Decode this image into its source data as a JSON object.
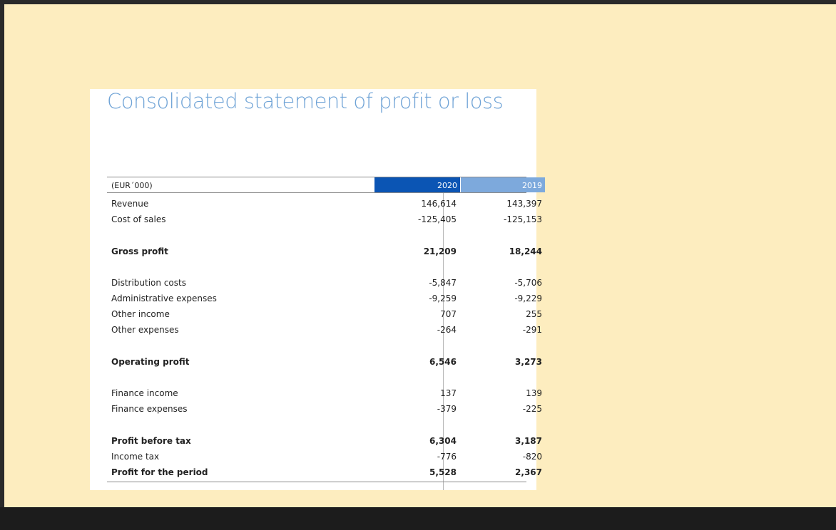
{
  "title": "Consolidated statement of profit or loss",
  "unit": "(EUR´000)",
  "years": [
    "2020",
    "2019"
  ],
  "rows": [
    {
      "label": "Revenue",
      "v2020": "146,614",
      "v2019": "143,397",
      "bold": false
    },
    {
      "label": "Cost of sales",
      "v2020": "-125,405",
      "v2019": "-125,153",
      "bold": false
    },
    {
      "label": "Gross profit",
      "v2020": "21,209",
      "v2019": "18,244",
      "bold": true
    },
    {
      "label": "Distribution costs",
      "v2020": "-5,847",
      "v2019": "-5,706",
      "bold": false
    },
    {
      "label": "Administrative expenses",
      "v2020": "-9,259",
      "v2019": "-9,229",
      "bold": false
    },
    {
      "label": "Other income",
      "v2020": "707",
      "v2019": "255",
      "bold": false
    },
    {
      "label": "Other expenses",
      "v2020": "-264",
      "v2019": "-291",
      "bold": false
    },
    {
      "label": "Operating profit",
      "v2020": "6,546",
      "v2019": "3,273",
      "bold": true
    },
    {
      "label": "Finance income",
      "v2020": "137",
      "v2019": "139",
      "bold": false
    },
    {
      "label": "Finance expenses",
      "v2020": "-379",
      "v2019": "-225",
      "bold": false
    },
    {
      "label": "Profit before tax",
      "v2020": "6,304",
      "v2019": "3,187",
      "bold": true
    },
    {
      "label": "Income tax",
      "v2020": "-776",
      "v2019": "-820",
      "bold": false
    },
    {
      "label": "Profit for the period",
      "v2020": "5,528",
      "v2019": "2,367",
      "bold": true
    }
  ],
  "colors": {
    "header_2020": "#0b55b4",
    "header_2019": "#7da9dc",
    "title": "#6fa3d6",
    "background": "#fdedbf"
  }
}
